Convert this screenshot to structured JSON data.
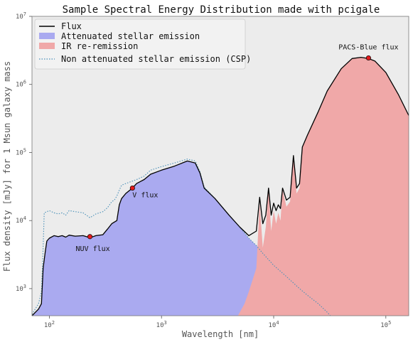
{
  "chart_data": {
    "type": "area",
    "title": "Sample Spectral Energy Distribution made with pcigale",
    "xlabel": "Wavelength [nm]",
    "ylabel": "Flux density [mJy] for 1 Msun galaxy mass",
    "xscale": "log",
    "yscale": "log",
    "xlim": [
      70,
      160000
    ],
    "ylim": [
      400,
      10000000
    ],
    "x_ticks": [
      {
        "value": 100,
        "base": "10",
        "exp": "2"
      },
      {
        "value": 1000,
        "base": "10",
        "exp": "3"
      },
      {
        "value": 10000,
        "base": "10",
        "exp": "4"
      },
      {
        "value": 100000,
        "base": "10",
        "exp": "5"
      }
    ],
    "y_ticks": [
      {
        "value": 1000,
        "base": "10",
        "exp": "3"
      },
      {
        "value": 10000,
        "base": "10",
        "exp": "4"
      },
      {
        "value": 100000,
        "base": "10",
        "exp": "5"
      },
      {
        "value": 1000000,
        "base": "10",
        "exp": "6"
      },
      {
        "value": 10000000,
        "base": "10",
        "exp": "7"
      }
    ],
    "grid": false,
    "legend_position": "upper-left",
    "series": [
      {
        "name": "Flux",
        "style": "line",
        "color": "#000000",
        "x": [
          70,
          80,
          85,
          88,
          92,
          95,
          100,
          110,
          120,
          130,
          140,
          150,
          170,
          200,
          230,
          260,
          300,
          330,
          360,
          380,
          400,
          420,
          440,
          480,
          550,
          600,
          700,
          800,
          1000,
          1300,
          1700,
          2000,
          2200,
          2400,
          3000,
          4000,
          5000,
          6000,
          7000,
          7500,
          8000,
          8500,
          9000,
          9500,
          10000,
          10500,
          11000,
          11500,
          12000,
          13000,
          14000,
          15000,
          16000,
          17000,
          18000,
          20000,
          25000,
          30000,
          40000,
          50000,
          60000,
          70000,
          80000,
          100000,
          130000,
          160000
        ],
        "y": [
          400,
          500,
          600,
          2000,
          3500,
          5000,
          5500,
          6000,
          5800,
          6000,
          5700,
          6100,
          5900,
          6000,
          5600,
          6000,
          6200,
          7500,
          9000,
          9500,
          10000,
          17000,
          21000,
          25000,
          30000,
          35000,
          40000,
          48000,
          55000,
          63000,
          75000,
          70000,
          50000,
          30000,
          21000,
          12000,
          8000,
          6000,
          7000,
          22000,
          9000,
          12000,
          30000,
          12000,
          18000,
          14000,
          17000,
          15000,
          30000,
          20000,
          22000,
          90000,
          30000,
          35000,
          120000,
          180000,
          400000,
          800000,
          1700000,
          2400000,
          2500000,
          2400000,
          2200000,
          1500000,
          700000,
          350000
        ]
      },
      {
        "name": "Attenuated stellar emission",
        "style": "fill",
        "color": "#aaaaf0",
        "x": [
          70,
          80,
          85,
          88,
          92,
          95,
          100,
          110,
          120,
          130,
          140,
          150,
          170,
          200,
          230,
          260,
          300,
          330,
          360,
          380,
          400,
          420,
          440,
          480,
          550,
          600,
          700,
          800,
          1000,
          1300,
          1700,
          2000,
          2200,
          2400,
          3000,
          4000,
          5000,
          6000,
          7000,
          8000,
          10000,
          13000,
          17000,
          20000,
          25000,
          30000,
          32000
        ],
        "y": [
          400,
          500,
          600,
          2000,
          3500,
          5000,
          5500,
          6000,
          5800,
          6000,
          5700,
          6100,
          5900,
          6000,
          5600,
          6000,
          6200,
          7500,
          9000,
          9500,
          10000,
          17000,
          21000,
          25000,
          30000,
          35000,
          40000,
          48000,
          55000,
          63000,
          75000,
          70000,
          50000,
          30000,
          21000,
          12000,
          8000,
          5500,
          4300,
          3300,
          2200,
          1500,
          1000,
          800,
          600,
          450,
          400
        ]
      },
      {
        "name": "IR re-remission",
        "style": "fill",
        "color": "#f0a8a8",
        "x": [
          4800,
          5500,
          6000,
          7000,
          7500,
          8000,
          8500,
          9000,
          9500,
          10000,
          10500,
          11000,
          11500,
          12000,
          13000,
          14000,
          15000,
          16000,
          17000,
          18000,
          20000,
          25000,
          30000,
          40000,
          50000,
          60000,
          70000,
          80000,
          100000,
          130000,
          160000
        ],
        "y": [
          400,
          600,
          900,
          2000,
          18000,
          4000,
          8000,
          28000,
          7000,
          14000,
          9000,
          13000,
          10000,
          28000,
          16000,
          19000,
          88000,
          25000,
          30000,
          118000,
          175000,
          400000,
          800000,
          1700000,
          2400000,
          2500000,
          2400000,
          2200000,
          1500000,
          700000,
          350000
        ]
      },
      {
        "name": "Non attenuated stellar emission (CSP)",
        "style": "dotted",
        "color": "#4a90b8",
        "x": [
          70,
          80,
          85,
          88,
          90,
          100,
          110,
          120,
          130,
          140,
          150,
          170,
          200,
          230,
          260,
          300,
          330,
          360,
          380,
          400,
          420,
          440,
          480,
          550,
          600,
          700,
          800,
          1000,
          1300,
          1700,
          2000,
          2200,
          2400,
          3000,
          4000,
          5000,
          6000,
          7000,
          8000,
          10000,
          13000,
          17000,
          20000,
          25000,
          30000,
          32000
        ],
        "y": [
          420,
          600,
          900,
          4000,
          13000,
          14000,
          13000,
          12500,
          13000,
          12000,
          14000,
          13500,
          13000,
          11000,
          12500,
          13500,
          15500,
          19000,
          20000,
          23000,
          28000,
          33000,
          35000,
          38000,
          40000,
          45000,
          55000,
          62000,
          70000,
          80000,
          75000,
          52000,
          31000,
          21000,
          12000,
          8000,
          5500,
          4300,
          3300,
          2200,
          1500,
          1000,
          800,
          600,
          450,
          400
        ]
      }
    ],
    "points": [
      {
        "label": "NUV flux",
        "x": 230,
        "y": 5800,
        "color": "#e41a1c"
      },
      {
        "label": "V flux",
        "x": 550,
        "y": 30000,
        "color": "#e41a1c"
      },
      {
        "label": "PACS-Blue flux",
        "x": 70000,
        "y": 2450000,
        "color": "#e41a1c"
      }
    ],
    "colors": {
      "background": "#ececec",
      "axes_frame": "#555555"
    }
  }
}
